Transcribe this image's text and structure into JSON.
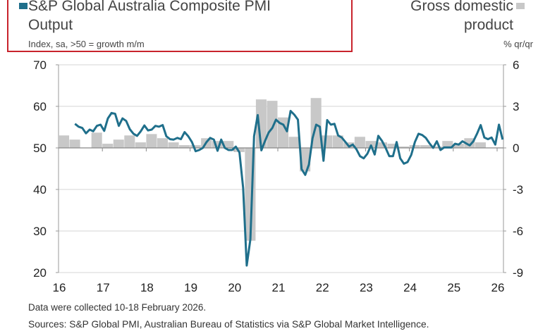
{
  "chart_data": {
    "type": "bar+line",
    "legend": {
      "pmi": "S&P Global Australia Composite PMI Output",
      "gdp": "Gross domestic product"
    },
    "left_axis_label": "Index, sa, >50 = growth m/m",
    "right_axis_label": "% qr/qr",
    "left_ylim": [
      20,
      70
    ],
    "left_ticks": [
      "70",
      "60",
      "50",
      "40",
      "30",
      "20"
    ],
    "right_ylim": [
      -9,
      6
    ],
    "right_ticks": [
      "6",
      "3",
      "0",
      "-3",
      "-6",
      "-9"
    ],
    "x_ticks": [
      "16",
      "17",
      "18",
      "19",
      "20",
      "21",
      "22",
      "23",
      "24",
      "25",
      "26"
    ],
    "grid": true,
    "colors": {
      "pmi": "#1f6f8b",
      "gdp": "#c8c8c8",
      "highlight_box": "#c8232c"
    },
    "pmi_series": {
      "start": "2016-05",
      "frequency": "monthly",
      "values": [
        55.8,
        55.1,
        54.8,
        53.5,
        54.4,
        54.0,
        55.3,
        55.6,
        54.1,
        57.1,
        58.4,
        58.2,
        55.3,
        57.1,
        56.5,
        54.5,
        53.4,
        52.9,
        54.0,
        55.4,
        54.2,
        54.4,
        55.3,
        55.1,
        55.5,
        52.8,
        52.1,
        52.0,
        52.4,
        52.1,
        53.8,
        52.8,
        51.4,
        49.2,
        49.5,
        50.0,
        51.4,
        52.4,
        52.0,
        49.3,
        52.0,
        50.0,
        49.5,
        49.5,
        50.3,
        48.9,
        40.4,
        21.7,
        28.0,
        52.8,
        57.9,
        49.4,
        51.7,
        53.7,
        54.8,
        56.8,
        56.0,
        55.6,
        54.0,
        58.9,
        58.0,
        56.8,
        44.9,
        43.5,
        46.0,
        52.3,
        55.6,
        55.1,
        46.9,
        56.7,
        55.6,
        55.8,
        53.0,
        52.5,
        51.4,
        50.3,
        50.8,
        49.7,
        48.0,
        47.5,
        48.6,
        50.6,
        48.4,
        52.9,
        51.7,
        50.0,
        48.0,
        48.0,
        51.4,
        47.5,
        46.2,
        46.6,
        48.3,
        51.4,
        53.4,
        53.1,
        52.4,
        51.1,
        50.0,
        51.6,
        49.5,
        50.1,
        50.1,
        50.1,
        51.0,
        50.8,
        51.6,
        51.1,
        50.6,
        51.6,
        53.4,
        55.5,
        52.5,
        52.1,
        52.5,
        50.8,
        55.6,
        52.0
      ]
    },
    "gdp_series": {
      "start": "2016-Q1",
      "frequency": "quarterly",
      "values": [
        0.9,
        0.6,
        0,
        1.1,
        0.3,
        0.6,
        0.9,
        0.4,
        1.0,
        0.7,
        0.4,
        0.2,
        0.2,
        0.7,
        0.5,
        0.5,
        -0.3,
        -6.7,
        3.5,
        3.4,
        2.2,
        0.8,
        -1.7,
        3.6,
        0.9,
        0.9,
        0.4,
        0.8,
        0.5,
        0.4,
        0.3,
        0.1,
        0.2,
        0.2,
        0.1,
        0.5,
        0.3,
        0.7,
        0.4
      ]
    }
  },
  "footer": {
    "note": "Data were collected 10-18 February 2026.",
    "sources": "Sources: S&P Global PMI, Australian Bureau of Statistics via S&P Global Market Intelligence."
  }
}
